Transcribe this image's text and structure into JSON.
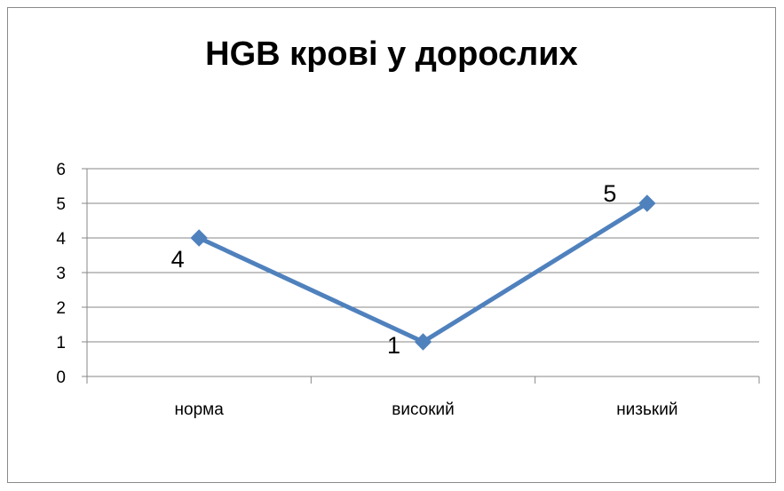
{
  "chart_data": {
    "type": "line",
    "title": "HGB крові у дорослих",
    "xlabel": "",
    "ylabel": "",
    "categories": [
      "норма",
      "високий",
      "низький"
    ],
    "series": [
      {
        "values": [
          4,
          1,
          5
        ],
        "color": "#4f81bd",
        "marker": "diamond",
        "data_labels": [
          "4",
          "1",
          "5"
        ]
      }
    ],
    "ylim": [
      0,
      6
    ],
    "yticks": [
      0,
      1,
      2,
      3,
      4,
      5,
      6
    ],
    "grid": true,
    "legend": "none"
  }
}
